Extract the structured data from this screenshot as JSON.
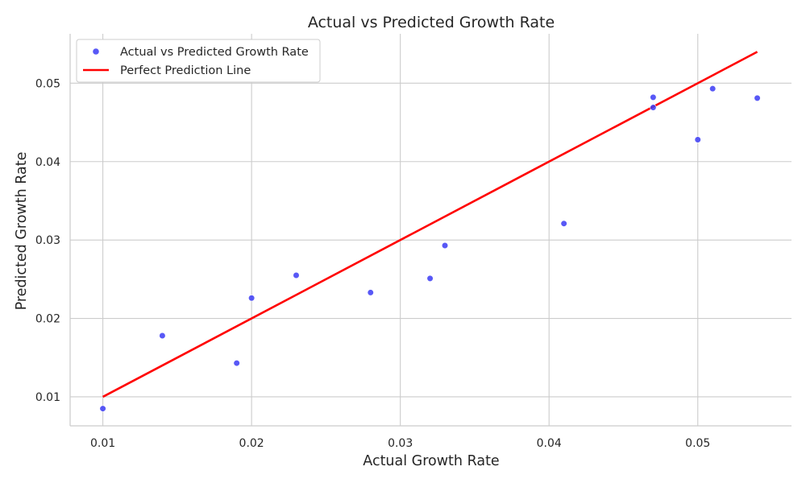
{
  "chart_data": {
    "type": "scatter",
    "title": "Actual vs Predicted Growth Rate",
    "xlabel": "Actual Growth Rate",
    "ylabel": "Predicted Growth Rate",
    "xlim": [
      0.0078,
      0.0563
    ],
    "ylim": [
      0.0063,
      0.0563
    ],
    "xticks": [
      "0.01",
      "0.02",
      "0.03",
      "0.04",
      "0.05"
    ],
    "yticks": [
      "0.01",
      "0.02",
      "0.03",
      "0.04",
      "0.05"
    ],
    "grid": true,
    "legend_position": "top-left",
    "series": [
      {
        "name": "Actual vs Predicted Growth Rate",
        "type": "scatter",
        "color": "#3b3bf5",
        "points": [
          {
            "x": 0.01,
            "y": 0.0085
          },
          {
            "x": 0.014,
            "y": 0.0178
          },
          {
            "x": 0.019,
            "y": 0.0143
          },
          {
            "x": 0.02,
            "y": 0.0226
          },
          {
            "x": 0.023,
            "y": 0.0255
          },
          {
            "x": 0.028,
            "y": 0.0233
          },
          {
            "x": 0.032,
            "y": 0.0251
          },
          {
            "x": 0.033,
            "y": 0.0293
          },
          {
            "x": 0.041,
            "y": 0.0321
          },
          {
            "x": 0.047,
            "y": 0.0482
          },
          {
            "x": 0.047,
            "y": 0.0469
          },
          {
            "x": 0.05,
            "y": 0.0428
          },
          {
            "x": 0.051,
            "y": 0.0493
          },
          {
            "x": 0.054,
            "y": 0.0481
          }
        ]
      },
      {
        "name": "Perfect Prediction Line",
        "type": "line",
        "color": "#ff0000",
        "points": [
          {
            "x": 0.01,
            "y": 0.01
          },
          {
            "x": 0.054,
            "y": 0.054
          }
        ]
      }
    ]
  }
}
